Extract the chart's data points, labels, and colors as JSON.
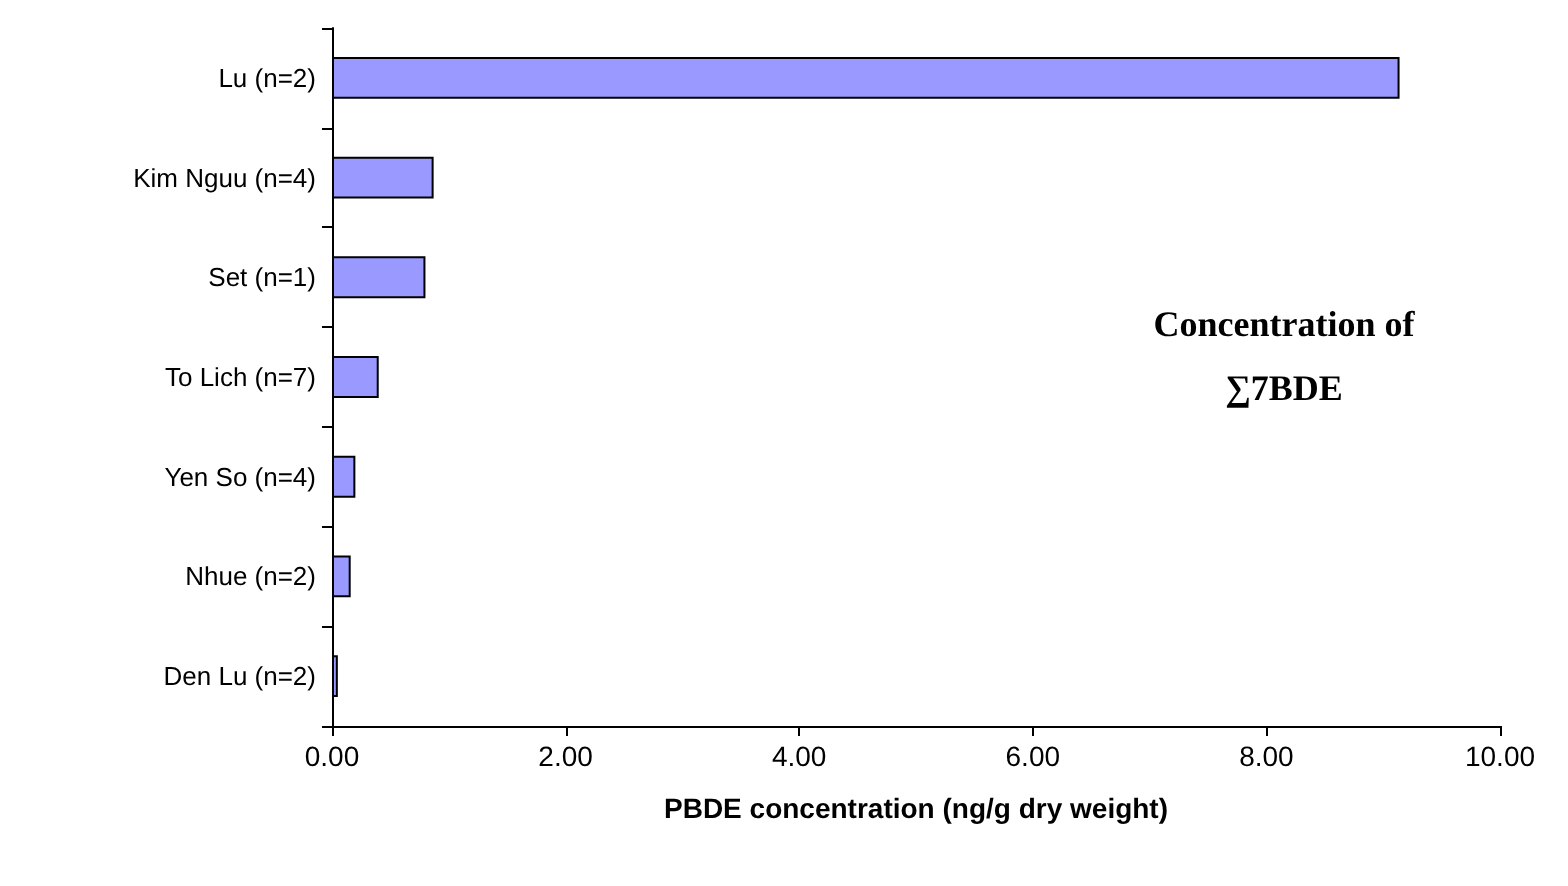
{
  "chart_data": {
    "type": "bar",
    "orientation": "horizontal",
    "xlabel": "PBDE concentration (ng/g dry weight)",
    "categories": [
      "Lu (n=2)",
      "Kim Nguu (n=4)",
      "Set (n=1)",
      "To Lich (n=7)",
      "Yen So (n=4)",
      "Nhue (n=2)",
      "Den Lu (n=2)"
    ],
    "values": [
      9.14,
      0.87,
      0.8,
      0.4,
      0.2,
      0.16,
      0.05
    ],
    "color": "#9999ff",
    "xlim": [
      0,
      10
    ],
    "xticks": [
      {
        "value": 0,
        "label": "0.00"
      },
      {
        "value": 2,
        "label": "2.00"
      },
      {
        "value": 4,
        "label": "4.00"
      },
      {
        "value": 6,
        "label": "6.00"
      },
      {
        "value": 8,
        "label": "8.00"
      },
      {
        "value": 10,
        "label": "10.00"
      }
    ],
    "annotations": [
      "Concentration of\n∑7BDE"
    ],
    "grid": false
  }
}
